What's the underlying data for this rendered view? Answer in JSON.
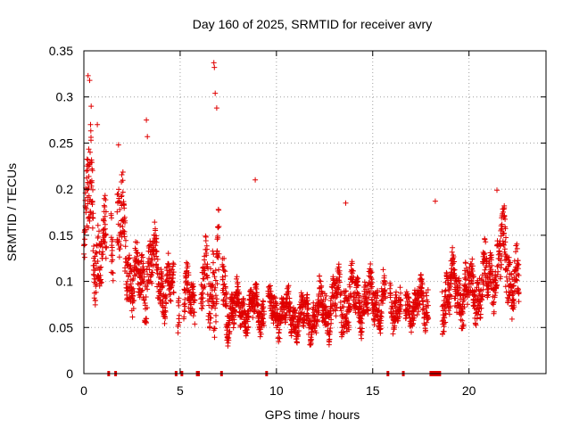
{
  "chart_data": {
    "type": "scatter",
    "title": "Day 160 of 2025, SRMTID for receiver avry",
    "xlabel": "GPS time / hours",
    "ylabel": "SRMTID / TECUs",
    "xlim": [
      0,
      24
    ],
    "ylim": [
      0,
      0.35
    ],
    "x_ticks": [
      "0",
      "5",
      "10",
      "15",
      "20"
    ],
    "x_tick_values": [
      0,
      5,
      10,
      15,
      20
    ],
    "y_ticks": [
      "0",
      "0.05",
      "0.1",
      "0.15",
      "0.2",
      "0.25",
      "0.3",
      "0.35"
    ],
    "y_tick_values": [
      0,
      0.05,
      0.1,
      0.15,
      0.2,
      0.25,
      0.3,
      0.35
    ],
    "grid": true,
    "marker": "plus",
    "color": "#e00000",
    "envelope": {
      "x": [
        0,
        0.3,
        0.5,
        1.0,
        1.5,
        2.0,
        2.5,
        3.0,
        3.5,
        4.0,
        5.0,
        6.0,
        6.8,
        7.5,
        8.5,
        9.5,
        10.5,
        11.5,
        12.5,
        13.5,
        14.5,
        15.5,
        16.5,
        17.5,
        18.0,
        19.0,
        20.0,
        21.0,
        21.8,
        22.6
      ],
      "center": [
        0.12,
        0.2,
        0.15,
        0.12,
        0.15,
        0.15,
        0.1,
        0.1,
        0.12,
        0.1,
        0.08,
        0.08,
        0.12,
        0.07,
        0.07,
        0.07,
        0.065,
        0.06,
        0.07,
        0.08,
        0.08,
        0.08,
        0.075,
        0.075,
        0.09,
        0.09,
        0.085,
        0.1,
        0.13,
        0.09
      ],
      "spread": [
        0.03,
        0.08,
        0.05,
        0.04,
        0.05,
        0.05,
        0.03,
        0.03,
        0.04,
        0.03,
        0.025,
        0.025,
        0.06,
        0.025,
        0.02,
        0.02,
        0.02,
        0.02,
        0.025,
        0.03,
        0.025,
        0.025,
        0.02,
        0.02,
        0.04,
        0.03,
        0.03,
        0.03,
        0.04,
        0.03
      ]
    },
    "spikes": [
      {
        "x": 0.22,
        "y": 0.323
      },
      {
        "x": 0.3,
        "y": 0.318
      },
      {
        "x": 0.38,
        "y": 0.29
      },
      {
        "x": 0.7,
        "y": 0.27
      },
      {
        "x": 1.8,
        "y": 0.248
      },
      {
        "x": 3.25,
        "y": 0.275
      },
      {
        "x": 3.3,
        "y": 0.257
      },
      {
        "x": 6.75,
        "y": 0.337
      },
      {
        "x": 6.78,
        "y": 0.332
      },
      {
        "x": 6.82,
        "y": 0.304
      },
      {
        "x": 6.9,
        "y": 0.288
      },
      {
        "x": 8.9,
        "y": 0.21
      },
      {
        "x": 13.6,
        "y": 0.185
      },
      {
        "x": 18.25,
        "y": 0.187
      },
      {
        "x": 21.45,
        "y": 0.199
      }
    ],
    "gap_markers": [
      {
        "x0": 1.22,
        "x1": 1.34
      },
      {
        "x0": 1.58,
        "x1": 1.68
      },
      {
        "x0": 4.72,
        "x1": 4.82
      },
      {
        "x0": 5.02,
        "x1": 5.12
      },
      {
        "x0": 5.82,
        "x1": 6.02
      },
      {
        "x0": 7.08,
        "x1": 7.14
      },
      {
        "x0": 9.42,
        "x1": 9.52
      },
      {
        "x0": 15.72,
        "x1": 15.84
      },
      {
        "x0": 16.52,
        "x1": 16.64
      },
      {
        "x0": 17.95,
        "x1": 18.55
      }
    ]
  }
}
